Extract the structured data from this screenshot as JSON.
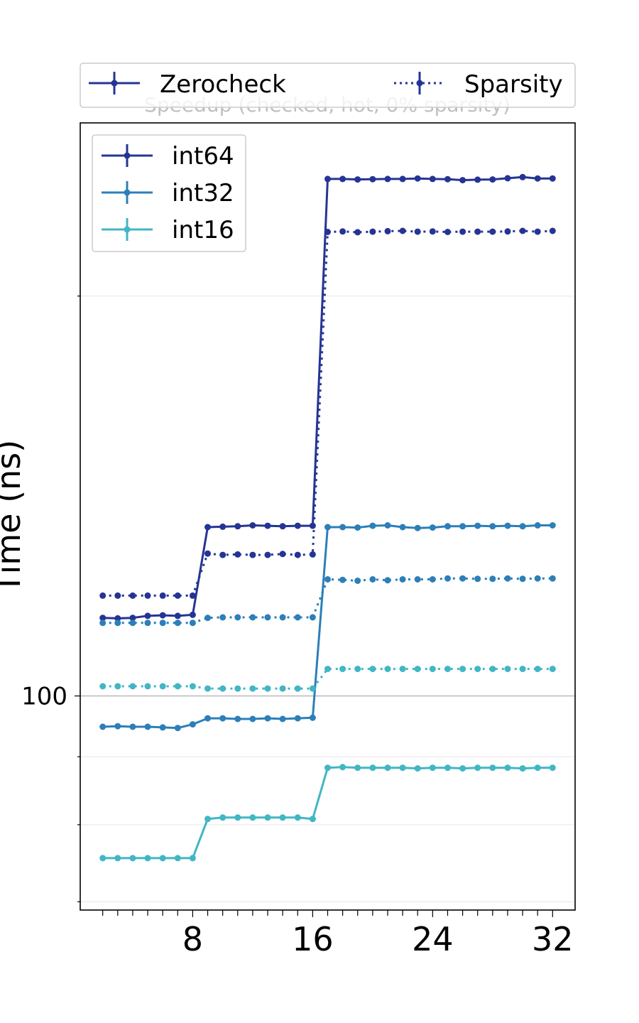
{
  "chart_data": {
    "type": "line",
    "title": "Speedup (checked, hot, 0% sparsity)",
    "xlabel": "",
    "ylabel": "Time (ns)",
    "y_scale": "log",
    "ylim": [
      69,
      270
    ],
    "xlim": [
      0.5,
      33.5
    ],
    "x_ticks": [
      8,
      16,
      24,
      32
    ],
    "y_ticks": [
      100
    ],
    "grid": "y-major-and-minor",
    "legend_top": {
      "placement": "top, outside plot",
      "entries": [
        {
          "label": "Zerocheck",
          "linestyle": "solid"
        },
        {
          "label": "Sparsity",
          "linestyle": "dotted"
        }
      ]
    },
    "legend_inner": {
      "placement": "upper-left",
      "entries": [
        {
          "label": "int64",
          "color": "#253494"
        },
        {
          "label": "int32",
          "color": "#2c7fb8"
        },
        {
          "label": "int16",
          "color": "#41b6c4"
        }
      ]
    },
    "x": [
      2,
      3,
      4,
      5,
      6,
      7,
      8,
      9,
      10,
      11,
      12,
      13,
      14,
      15,
      16,
      17,
      18,
      19,
      20,
      21,
      22,
      23,
      24,
      25,
      26,
      27,
      28,
      29,
      30,
      31,
      32
    ],
    "series": [
      {
        "name": "int64",
        "style": "Zerocheck",
        "color": "#253494",
        "values": [
          114.5,
          114.4,
          114.5,
          114.9,
          115,
          114.9,
          115.1,
          134,
          134.1,
          134.2,
          134.4,
          134.3,
          134.2,
          134.3,
          134.3,
          245,
          245,
          244.8,
          244.9,
          245,
          245,
          245.2,
          245,
          244.9,
          244.5,
          244.7,
          244.8,
          245.3,
          245.8,
          245.2,
          245.2
        ]
      },
      {
        "name": "int64",
        "style": "Sparsity",
        "color": "#253494",
        "values": [
          119,
          119,
          119,
          119,
          119,
          119,
          119,
          128,
          127.7,
          127.8,
          127.7,
          127.7,
          127.9,
          127.7,
          127.8,
          223.5,
          223.7,
          223.4,
          223.6,
          223.8,
          223.9,
          223.6,
          223.7,
          223.5,
          223.6,
          223.6,
          223.6,
          223.7,
          223.9,
          223.6,
          223.9
        ]
      },
      {
        "name": "int32",
        "style": "Zerocheck",
        "color": "#2c7fb8",
        "values": [
          94.8,
          94.9,
          94.8,
          94.8,
          94.7,
          94.6,
          95.2,
          96.2,
          96.2,
          96.1,
          96.1,
          96.2,
          96.1,
          96.2,
          96.3,
          134,
          134,
          133.9,
          134.3,
          134.4,
          134,
          133.8,
          133.9,
          134.2,
          134.2,
          134.3,
          134.2,
          134.3,
          134.2,
          134.4,
          134.4
        ]
      },
      {
        "name": "int32",
        "style": "Sparsity",
        "color": "#2c7fb8",
        "values": [
          113.5,
          113.5,
          113.5,
          113.5,
          113.5,
          113.5,
          113.5,
          114.5,
          114.6,
          114.6,
          114.6,
          114.6,
          114.6,
          114.6,
          114.6,
          122.4,
          122.3,
          122.1,
          122.4,
          122.2,
          122.4,
          122.4,
          122.4,
          122.6,
          122.6,
          122.5,
          122.5,
          122.6,
          122.5,
          122.6,
          122.6
        ]
      },
      {
        "name": "int16",
        "style": "Zerocheck",
        "color": "#41b6c4",
        "values": [
          75.5,
          75.5,
          75.5,
          75.5,
          75.5,
          75.5,
          75.5,
          80.8,
          81,
          81,
          81,
          81,
          81,
          81,
          80.8,
          88.3,
          88.4,
          88.3,
          88.3,
          88.3,
          88.3,
          88.2,
          88.3,
          88.3,
          88.2,
          88.3,
          88.3,
          88.3,
          88.2,
          88.3,
          88.3
        ]
      },
      {
        "name": "int16",
        "style": "Sparsity",
        "color": "#41b6c4",
        "values": [
          101.7,
          101.7,
          101.7,
          101.7,
          101.7,
          101.7,
          101.7,
          101.3,
          101.3,
          101.3,
          101.3,
          101.3,
          101.3,
          101.3,
          101.3,
          104.8,
          104.8,
          104.8,
          104.8,
          104.8,
          104.8,
          104.8,
          104.8,
          104.8,
          104.8,
          104.8,
          104.8,
          104.8,
          104.8,
          104.8,
          104.8
        ]
      }
    ]
  }
}
